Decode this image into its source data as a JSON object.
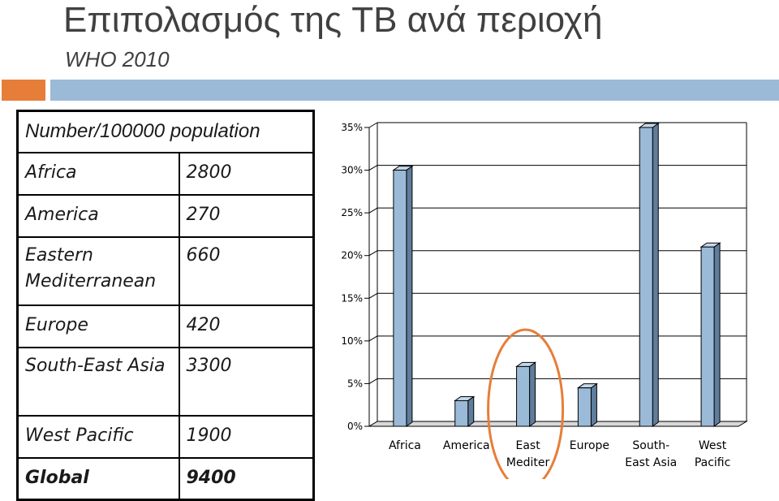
{
  "slide": {
    "title": "Επιπολασμός της TB ανά περιοχή",
    "subtitle": "WHO 2010",
    "accent_colors": {
      "square": "#E67E3A",
      "bar": "#9BBAD8"
    }
  },
  "table": {
    "header": "Number/100000 population",
    "rows": [
      {
        "region": "Africa",
        "value": "2800"
      },
      {
        "region": "America",
        "value": "270"
      },
      {
        "region": "Eastern Mediterranean",
        "value": "660"
      },
      {
        "region": "Europe",
        "value": "420"
      },
      {
        "region": "South-East Asia",
        "value": "3300"
      },
      {
        "region": "West Pacific",
        "value": "1900"
      },
      {
        "region": "Global",
        "value": "9400"
      }
    ]
  },
  "chart_data": {
    "type": "bar",
    "categories": [
      [
        "Africa"
      ],
      [
        "America"
      ],
      [
        "East",
        "Mediter"
      ],
      [
        "Europe"
      ],
      [
        "South-",
        "East Asia"
      ],
      [
        "West",
        "Pacific"
      ]
    ],
    "values": [
      30,
      3,
      7,
      4.5,
      35,
      21
    ],
    "ylim": [
      0,
      35
    ],
    "yticks": [
      "0%",
      "5%",
      "10%",
      "15%",
      "20%",
      "25%",
      "30%",
      "35%"
    ],
    "bar_color": "#9BBAD8",
    "highlight": {
      "category_index": 2,
      "shape": "ellipse",
      "color": "#E67E3A"
    },
    "grid": true
  }
}
